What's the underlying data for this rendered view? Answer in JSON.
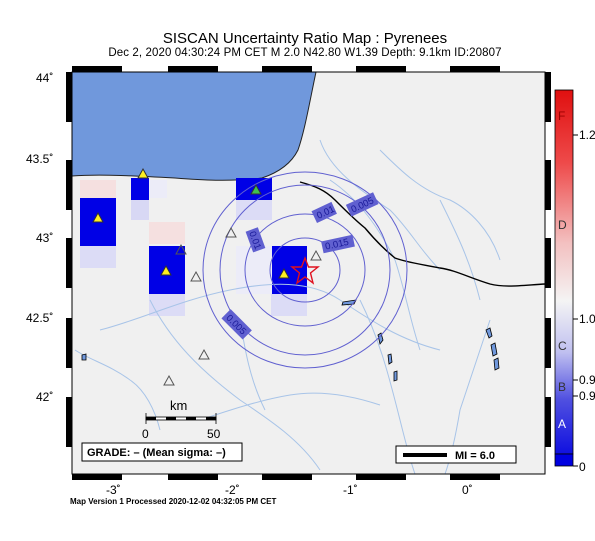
{
  "header": {
    "title": "SISCAN Uncertainty Ratio Map : Pyrenees",
    "subtitle": "Dec  2, 2020 04:30:24 PM CET   M 2.0   N42.80 W1.39   Depth: 9.1km   ID:20807"
  },
  "axes": {
    "lat_labels": [
      "44˚",
      "43.5˚",
      "43˚",
      "42.5˚",
      "42˚"
    ],
    "lon_labels": [
      "-3˚",
      "-2˚",
      "-1˚",
      "0˚"
    ]
  },
  "contours": [
    "0.01",
    "0.005",
    "0.015",
    "0.01",
    "0.005"
  ],
  "scale_bar": {
    "title": "km",
    "min_label": "0",
    "max_label": "50"
  },
  "grade_box": "GRADE: – (Mean sigma: –)",
  "mi_legend": "MI = 6.0",
  "colorbar": {
    "left_letters": [
      "F",
      "D",
      "C",
      "B",
      "A"
    ],
    "right_values": [
      "1.2",
      "1.0",
      "0.9",
      "0.9",
      "0"
    ]
  },
  "footer": "Map Version 1 Processed 2020-12-02 04:32:05 PM CET",
  "colors": {
    "sea": "#7098dc",
    "land": "#f0f0f0",
    "high_ratio": "#0000e6",
    "border": "#000000",
    "rivers": "#a8c4e8",
    "epicenter": "#e0101e",
    "contour": "#6060d0"
  }
}
